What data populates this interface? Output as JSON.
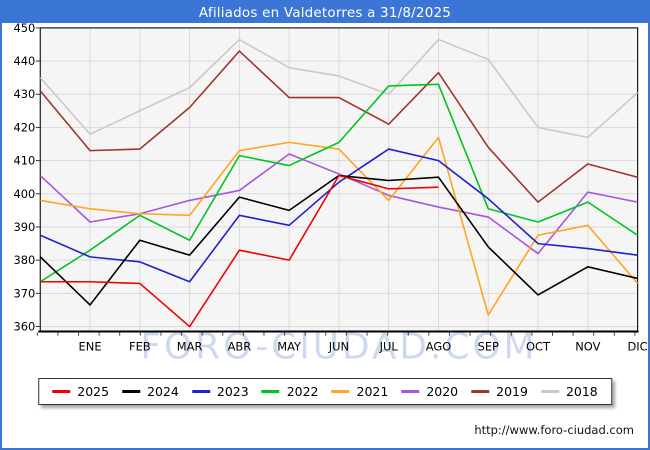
{
  "header": {
    "title": "Afiliados en Valdetorres a 31/8/2025"
  },
  "watermark": "FORO-CIUDAD.COM",
  "footer": {
    "url": "http://www.foro-ciudad.com"
  },
  "colors": {
    "header_bg": "#3b76d6",
    "frame_border": "#3b76d6",
    "plot_bg": "#f5f5f5",
    "grid": "#d9d9d9",
    "axis": "#1c1c1c",
    "watermark": "#b6c4ea"
  },
  "chart_data": {
    "type": "line",
    "title": "Afiliados en Valdetorres a 31/8/2025",
    "xlabel": "",
    "ylabel": "",
    "x_categories": [
      "ENE",
      "FEB",
      "MAR",
      "ABR",
      "MAY",
      "JUN",
      "JUL",
      "AGO",
      "SEP",
      "OCT",
      "NOV",
      "DIC"
    ],
    "series_note": "First value of each series is the unlabeled starting point drawn on the left edge of the plot, followed by the 12 monthly values. 2025 ends at AGO (data to 31/8/2025).",
    "ylim": [
      360,
      450
    ],
    "ytick_step": 10,
    "grid": true,
    "legend_position": "bottom",
    "series": [
      {
        "name": "2025",
        "color": "#ee0000",
        "values": [
          373.5,
          373.5,
          373,
          360,
          383,
          380,
          405.5,
          401.5,
          402
        ]
      },
      {
        "name": "2024",
        "color": "#000000",
        "values": [
          381,
          366.5,
          386,
          381.5,
          399,
          395,
          405.5,
          404,
          405,
          384,
          369.5,
          378,
          374.5
        ]
      },
      {
        "name": "2023",
        "color": "#2020cc",
        "values": [
          387.5,
          381,
          379.5,
          373.5,
          393.5,
          390.5,
          403.5,
          413.5,
          410,
          398.5,
          385,
          383.5,
          381.5
        ]
      },
      {
        "name": "2022",
        "color": "#00c420",
        "values": [
          373.5,
          383,
          393.5,
          386,
          411.5,
          408.5,
          415.5,
          432.5,
          433,
          395.5,
          391.5,
          397.5,
          387.5
        ]
      },
      {
        "name": "2021",
        "color": "#ffa51e",
        "values": [
          398,
          395.5,
          394,
          393.5,
          413,
          415.5,
          413.5,
          398,
          417,
          363.5,
          387.5,
          390.5,
          373
        ]
      },
      {
        "name": "2020",
        "color": "#a855e0",
        "values": [
          405.5,
          391.5,
          394,
          398,
          401,
          412,
          406,
          399.5,
          396,
          393,
          382,
          400.5,
          397.5
        ]
      },
      {
        "name": "2019",
        "color": "#a0352d",
        "values": [
          431,
          413,
          413.5,
          426,
          443,
          429,
          429,
          421,
          436.5,
          414,
          397.5,
          409,
          405
        ]
      },
      {
        "name": "2018",
        "color": "#c9c9c9",
        "values": [
          435,
          418,
          425,
          432,
          446.5,
          438,
          435.5,
          430,
          446.5,
          440.5,
          420,
          417,
          430.5
        ]
      }
    ]
  }
}
